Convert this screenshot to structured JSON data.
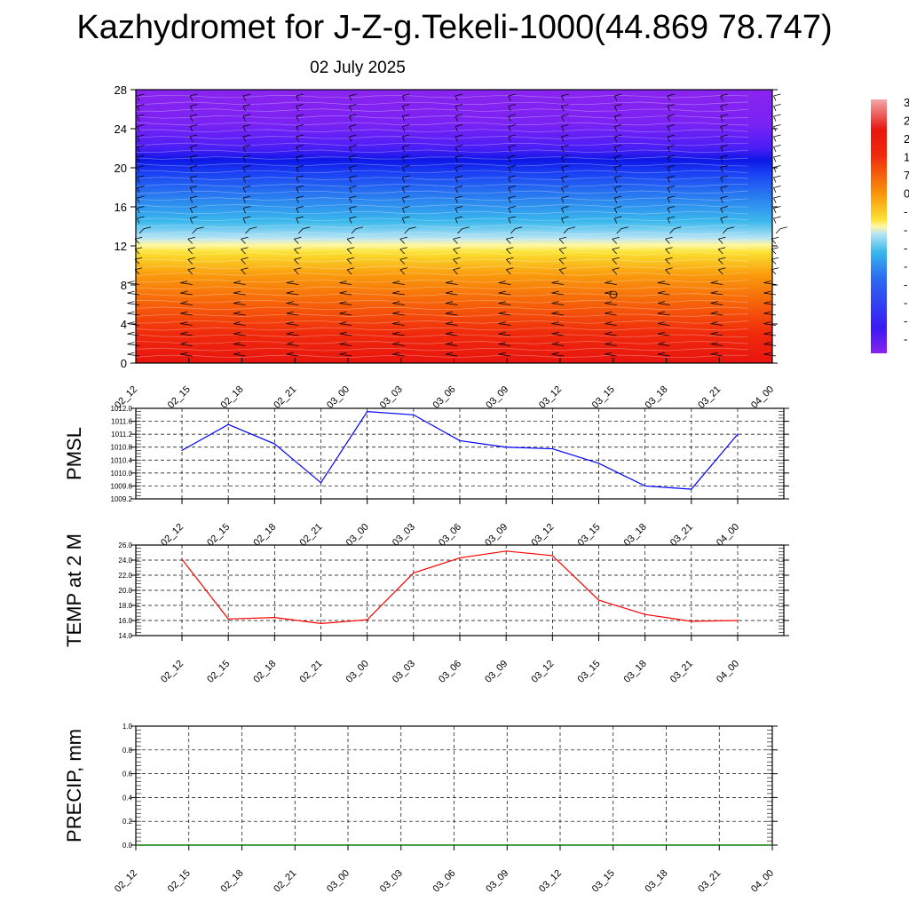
{
  "title": "Kazhydromet for J-Z-g.Tekeli-1000(44.869 78.747)",
  "subtitle": "02 July 2025",
  "chart_data": [
    {
      "type": "heatmap",
      "panel": "vertical-profile",
      "ylabel": "",
      "ylim": [
        0,
        28
      ],
      "yticks": [
        "0",
        "4",
        "8",
        "12",
        "16",
        "20",
        "24",
        "28"
      ],
      "xticks": [
        "02_12",
        "02_15",
        "02_18",
        "02_21",
        "03_00",
        "03_03",
        "03_06",
        "03_09",
        "03_12",
        "03_15",
        "03_18",
        "03_21",
        "04_00"
      ],
      "color_levels": [
        {
          "y": 0,
          "color": "#e8140e"
        },
        {
          "y": 3,
          "color": "#f02a0c"
        },
        {
          "y": 6,
          "color": "#f6600a"
        },
        {
          "y": 9,
          "color": "#fa9a0c"
        },
        {
          "y": 11.3,
          "color": "#fbe030"
        },
        {
          "y": 12.1,
          "color": "#fff8a0"
        },
        {
          "y": 12.8,
          "color": "#b8e4f4"
        },
        {
          "y": 14.5,
          "color": "#3ab8ec"
        },
        {
          "y": 17,
          "color": "#2a7ef0"
        },
        {
          "y": 19.5,
          "color": "#1a3ff4"
        },
        {
          "y": 20.8,
          "color": "#0d17e6"
        },
        {
          "y": 22,
          "color": "#4a1ef6"
        },
        {
          "y": 24.5,
          "color": "#7a22f4"
        },
        {
          "y": 28,
          "color": "#8a24ee"
        }
      ],
      "colorbar": {
        "labels": [
          "3",
          "2",
          "2",
          "1",
          "7",
          "0",
          "-",
          "-",
          "-",
          "-",
          "-",
          "-",
          "-",
          "-"
        ]
      }
    },
    {
      "type": "line",
      "panel": "pmsl",
      "ylabel": "PMSL",
      "ylim": [
        1009.2,
        1012.0
      ],
      "yticks": [
        "1012.0",
        "1011.6",
        "1011.2",
        "1010.8",
        "1010.4",
        "1010.0",
        "1009.6",
        "1009.2"
      ],
      "categories": [
        "02_12",
        "02_15",
        "02_18",
        "02_21",
        "03_00",
        "03_03",
        "03_06",
        "03_09",
        "03_12",
        "03_15",
        "03_18",
        "03_21",
        "04_00"
      ],
      "series": [
        {
          "values": [
            1010.7,
            1011.5,
            1010.9,
            1009.7,
            1011.9,
            1011.8,
            1011.0,
            1010.8,
            1010.75,
            1010.3,
            1009.6,
            1009.5,
            1011.2
          ],
          "color": "#0000ff"
        }
      ]
    },
    {
      "type": "line",
      "panel": "temp2m",
      "ylabel": "TEMP at 2 M",
      "ylim": [
        14.0,
        26.0
      ],
      "yticks": [
        "26.0",
        "24.0",
        "22.0",
        "20.0",
        "18.0",
        "16.0",
        "14.0"
      ],
      "categories": [
        "02_12",
        "02_15",
        "02_18",
        "02_21",
        "03_00",
        "03_03",
        "03_06",
        "03_09",
        "03_12",
        "03_15",
        "03_18",
        "03_21",
        "04_00"
      ],
      "series": [
        {
          "values": [
            24.1,
            16.2,
            16.4,
            15.6,
            16.1,
            22.3,
            24.3,
            25.2,
            24.6,
            18.7,
            16.8,
            15.9,
            16.0
          ],
          "color": "#ff0000"
        }
      ]
    },
    {
      "type": "line",
      "panel": "precip",
      "ylabel": "PRECIP, mm",
      "ylim": [
        0.0,
        1.0
      ],
      "yticks": [
        "1.0",
        "0.8",
        "0.6",
        "0.4",
        "0.2",
        "0.0"
      ],
      "categories": [
        "02_12",
        "02_15",
        "02_18",
        "02_21",
        "03_00",
        "03_03",
        "03_06",
        "03_09",
        "03_12",
        "03_15",
        "03_18",
        "03_21",
        "04_00"
      ],
      "series": [
        {
          "values": [
            0,
            0,
            0,
            0,
            0,
            0,
            0,
            0,
            0,
            0,
            0,
            0,
            0
          ],
          "color": "#008000"
        }
      ]
    }
  ]
}
